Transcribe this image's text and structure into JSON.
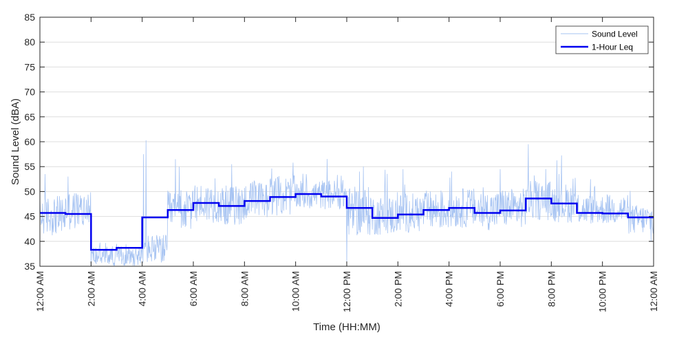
{
  "chart_data": {
    "type": "line",
    "title": "",
    "xlabel": "Time (HH:MM)",
    "ylabel": "Sound Level (dBA)",
    "ylim": [
      35,
      85
    ],
    "yticks": [
      35,
      40,
      45,
      50,
      55,
      60,
      65,
      70,
      75,
      80,
      85
    ],
    "xlim": [
      0,
      24
    ],
    "xticks": [
      0,
      2,
      4,
      6,
      8,
      10,
      12,
      14,
      16,
      18,
      20,
      22,
      24
    ],
    "xtick_labels": [
      "12:00 AM",
      "2:00 AM",
      "4:00 AM",
      "6:00 AM",
      "8:00 AM",
      "10:00 AM",
      "12:00 PM",
      "2:00 PM",
      "4:00 PM",
      "6:00 PM",
      "8:00 PM",
      "10:00 PM",
      "12:00 AM"
    ],
    "grid": "horizontal",
    "legend_position": "top-right",
    "series": [
      {
        "name": "Sound Level",
        "color": "#a6c3f2",
        "style": "thin-noisy",
        "hourly_base": [
          44,
          45,
          36.5,
          36.5,
          37.5,
          45,
          46.5,
          46,
          47,
          48,
          48.5,
          48.5,
          44.5,
          44,
          44.5,
          45,
          45.5,
          45,
          45.5,
          47,
          46.5,
          45.5,
          45.5,
          43.5
        ],
        "hourly_spread": [
          4,
          4,
          2,
          2,
          3,
          4,
          4,
          4,
          4,
          4,
          3,
          3,
          5,
          4,
          4,
          4,
          4,
          4,
          4,
          4,
          4,
          3,
          3,
          3
        ],
        "peaks": [
          {
            "x": 4.15,
            "y": 60.3
          },
          {
            "x": 4.05,
            "y": 57.5
          },
          {
            "x": 5.3,
            "y": 56.5
          },
          {
            "x": 5.45,
            "y": 55.0
          },
          {
            "x": 9.9,
            "y": 55.8
          },
          {
            "x": 7.5,
            "y": 55.5
          },
          {
            "x": 1.1,
            "y": 53.0
          },
          {
            "x": 12.0,
            "y": 35.3
          },
          {
            "x": 12.5,
            "y": 54.0
          },
          {
            "x": 19.1,
            "y": 59.5
          },
          {
            "x": 18.0,
            "y": 54.5
          },
          {
            "x": 16.1,
            "y": 54.0
          },
          {
            "x": 14.2,
            "y": 54.5
          },
          {
            "x": 20.3,
            "y": 53.5
          },
          {
            "x": 0.2,
            "y": 53.5
          },
          {
            "x": 23.9,
            "y": 40.0
          },
          {
            "x": 21.7,
            "y": 51.0
          }
        ]
      },
      {
        "name": "1-Hour Leq",
        "color": "#0000f0",
        "style": "step",
        "x": [
          0,
          1,
          2,
          3,
          4,
          5,
          6,
          7,
          8,
          9,
          10,
          11,
          12,
          13,
          14,
          15,
          16,
          17,
          18,
          19,
          20,
          21,
          22,
          23,
          24
        ],
        "values": [
          45.7,
          45.5,
          38.3,
          38.7,
          44.8,
          46.3,
          47.7,
          47.1,
          48.1,
          48.9,
          49.5,
          49.0,
          46.7,
          44.7,
          45.4,
          46.3,
          46.7,
          45.7,
          46.2,
          48.6,
          47.6,
          45.7,
          45.6,
          44.8,
          44.8
        ]
      }
    ]
  }
}
